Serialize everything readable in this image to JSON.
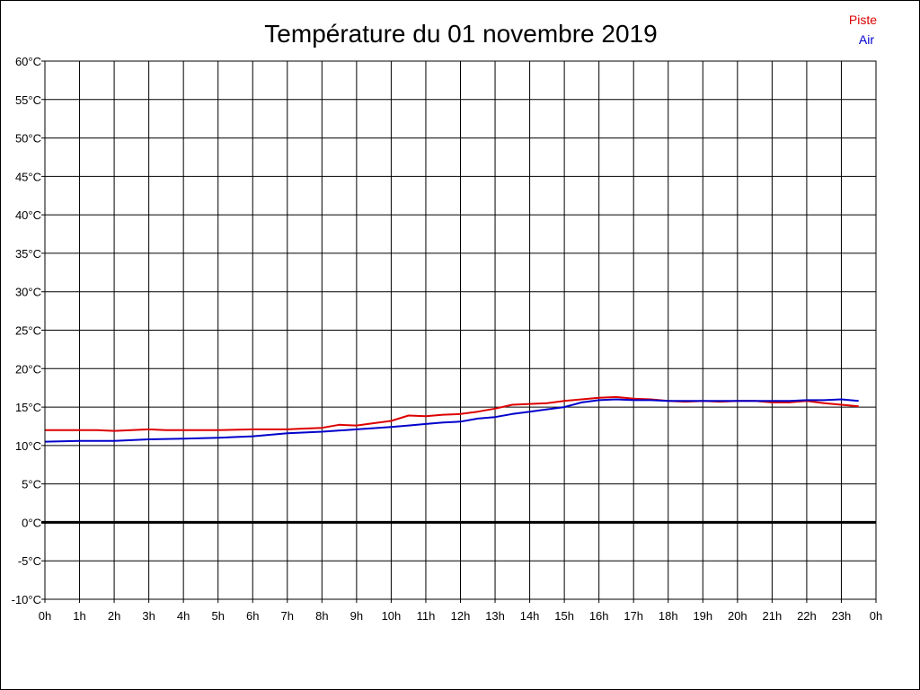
{
  "chart_data": {
    "type": "line",
    "title": "Température du 01 novembre 2019",
    "xlabel": "",
    "ylabel": "",
    "x_ticks": [
      "0h",
      "1h",
      "2h",
      "3h",
      "4h",
      "5h",
      "6h",
      "7h",
      "8h",
      "9h",
      "10h",
      "11h",
      "12h",
      "13h",
      "14h",
      "15h",
      "16h",
      "17h",
      "18h",
      "19h",
      "20h",
      "21h",
      "22h",
      "23h",
      "0h"
    ],
    "y_ticks": [
      "60°C",
      "55°C",
      "50°C",
      "45°C",
      "40°C",
      "35°C",
      "30°C",
      "25°C",
      "20°C",
      "15°C",
      "10°C",
      "5°C",
      "0°C",
      "-5°C",
      "-10°C"
    ],
    "xlim": [
      0,
      24
    ],
    "ylim": [
      -10,
      60
    ],
    "grid": true,
    "legend_position": "top-right",
    "series": [
      {
        "name": "Piste",
        "color": "#dd0000",
        "x": [
          0,
          1,
          1.5,
          2,
          2.5,
          3,
          3.5,
          4,
          5,
          6,
          7,
          7.5,
          8,
          8.5,
          9,
          9.5,
          10,
          10.5,
          11,
          11.5,
          12,
          12.5,
          13,
          13.5,
          14,
          14.5,
          15,
          15.5,
          16,
          16.5,
          17,
          17.5,
          18,
          18.5,
          19,
          19.5,
          20,
          20.5,
          21,
          21.5,
          22,
          22.5,
          23,
          23.5
        ],
        "values": [
          12,
          12,
          12,
          11.9,
          12,
          12.1,
          12,
          12,
          12,
          12.1,
          12.1,
          12.2,
          12.3,
          12.7,
          12.6,
          12.9,
          13.2,
          13.9,
          13.8,
          14,
          14.1,
          14.4,
          14.8,
          15.3,
          15.4,
          15.5,
          15.8,
          16,
          16.2,
          16.3,
          16.1,
          16,
          15.8,
          15.7,
          15.8,
          15.7,
          15.8,
          15.8,
          15.6,
          15.6,
          15.8,
          15.5,
          15.3,
          15.1
        ]
      },
      {
        "name": "Air",
        "color": "#0000cc",
        "x": [
          0,
          1,
          2,
          3,
          4,
          5,
          6,
          7,
          8,
          9,
          10,
          10.5,
          11,
          11.5,
          12,
          12.5,
          13,
          13.5,
          14,
          14.5,
          15,
          15.5,
          16,
          16.5,
          17,
          17.5,
          18,
          18.5,
          19,
          19.5,
          20,
          20.5,
          21,
          21.5,
          22,
          22.5,
          23,
          23.5
        ],
        "values": [
          10.5,
          10.6,
          10.6,
          10.8,
          10.9,
          11,
          11.2,
          11.6,
          11.8,
          12.1,
          12.4,
          12.6,
          12.8,
          13,
          13.1,
          13.5,
          13.7,
          14.1,
          14.4,
          14.7,
          15,
          15.6,
          15.9,
          16,
          15.9,
          15.9,
          15.8,
          15.8,
          15.8,
          15.8,
          15.8,
          15.8,
          15.8,
          15.8,
          15.9,
          15.9,
          16,
          15.8
        ]
      }
    ]
  }
}
